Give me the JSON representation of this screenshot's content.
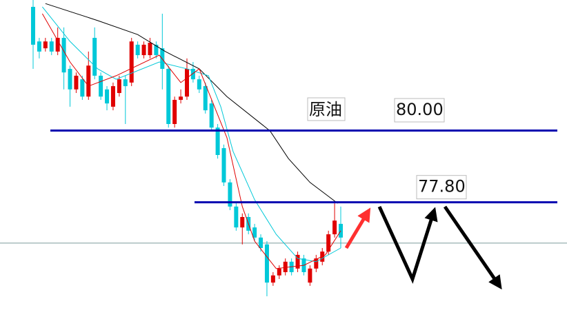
{
  "chart_data": {
    "type": "candlestick",
    "xlim": [
      -5.38,
      86.77
    ],
    "ylim": [
      74.5,
      84.0
    ],
    "up_color": "#e00000",
    "down_color": "#00c8d8",
    "open": [
      83.79,
      82.73,
      82.52,
      82.73,
      82.42,
      82.84,
      81.89,
      81.26,
      81.57,
      81.04,
      82.84,
      81.68,
      81.26,
      80.73,
      81.15,
      81.57,
      81.47,
      82.63,
      82.31,
      82.31,
      82.63,
      82.52,
      81.89,
      80.2,
      80.94,
      81.04,
      81.89,
      81.57,
      81.36,
      80.83,
      80.09,
      79.46,
      78.41,
      77.67,
      77.03,
      77.35,
      77.03,
      76.72,
      76.51,
      75.34,
      75.56,
      75.66,
      75.98,
      75.77,
      76.08,
      75.34,
      75.77,
      75.98,
      76.29,
      76.82,
      77.14
    ],
    "high": [
      84.0,
      82.84,
      82.84,
      82.84,
      83.16,
      83.16,
      81.99,
      81.78,
      81.68,
      82.42,
      83.16,
      81.78,
      81.36,
      81.47,
      81.68,
      81.68,
      82.84,
      82.73,
      82.73,
      82.84,
      82.73,
      83.58,
      81.99,
      81.04,
      81.26,
      82.21,
      82.1,
      81.68,
      81.47,
      80.94,
      80.2,
      79.57,
      78.51,
      77.77,
      77.46,
      77.46,
      77.14,
      76.82,
      76.61,
      75.66,
      75.87,
      76.08,
      76.08,
      76.29,
      76.19,
      75.87,
      76.19,
      76.4,
      76.93,
      77.77,
      77.67
    ],
    "low": [
      81.89,
      82.21,
      82.42,
      82.31,
      82.31,
      81.26,
      80.73,
      81.15,
      80.94,
      80.94,
      81.57,
      80.94,
      80.62,
      80.62,
      81.04,
      80.2,
      81.36,
      82.21,
      82.21,
      82.21,
      82.21,
      81.26,
      80.09,
      80.09,
      80.83,
      80.94,
      81.47,
      81.15,
      80.52,
      79.99,
      79.14,
      78.3,
      77.56,
      76.93,
      76.51,
      76.82,
      76.61,
      76.29,
      74.92,
      75.24,
      75.45,
      75.56,
      75.56,
      75.66,
      75.56,
      75.24,
      75.66,
      75.87,
      76.19,
      76.72,
      76.4
    ],
    "close": [
      82.63,
      82.42,
      82.73,
      82.42,
      82.84,
      81.78,
      81.26,
      81.68,
      81.04,
      81.99,
      81.68,
      81.04,
      80.83,
      81.36,
      81.57,
      81.36,
      82.73,
      82.31,
      82.63,
      82.69,
      82.31,
      81.89,
      80.2,
      80.94,
      81.04,
      81.89,
      81.57,
      81.26,
      80.62,
      80.09,
      79.25,
      78.41,
      77.67,
      77.03,
      77.35,
      76.93,
      76.72,
      76.4,
      75.34,
      75.56,
      75.77,
      75.98,
      75.66,
      76.19,
      75.66,
      75.77,
      76.08,
      76.29,
      76.82,
      77.24,
      76.72
    ],
    "lines": [
      {
        "color": "#000000",
        "x": [
          2,
          10.5,
          17,
          21.5,
          27,
          31.5,
          38.5,
          41.5,
          45,
          49.5
        ],
        "values": [
          83.89,
          83.37,
          82.94,
          82.42,
          81.89,
          81.04,
          79.99,
          79.14,
          78.41,
          77.77
        ]
      },
      {
        "color": "#00c8d8",
        "x": [
          1.5,
          6,
          10.5,
          13.5,
          20.5,
          25,
          28.5,
          30.5,
          32.5,
          36,
          39.5,
          43,
          46,
          50
        ],
        "values": [
          83.79,
          82.73,
          81.89,
          81.57,
          82.1,
          81.89,
          81.68,
          80.73,
          79.36,
          77.88,
          76.82,
          76.08,
          75.98,
          76.4
        ]
      },
      {
        "color": "#e00000",
        "x": [
          1.5,
          6,
          9,
          13.5,
          20.5,
          24,
          27,
          31.5,
          34,
          36,
          39.5,
          44,
          47.5,
          50
        ],
        "values": [
          83.58,
          82.1,
          81.36,
          81.68,
          82.31,
          81.47,
          81.89,
          79.78,
          77.67,
          76.61,
          75.77,
          75.87,
          76.19,
          76.93
        ]
      }
    ],
    "levels": [
      {
        "value": 80,
        "label": "80.00"
      },
      {
        "value": 77.8,
        "label": "77.80"
      }
    ],
    "reference_line": 76.55,
    "annotation": "原油"
  }
}
